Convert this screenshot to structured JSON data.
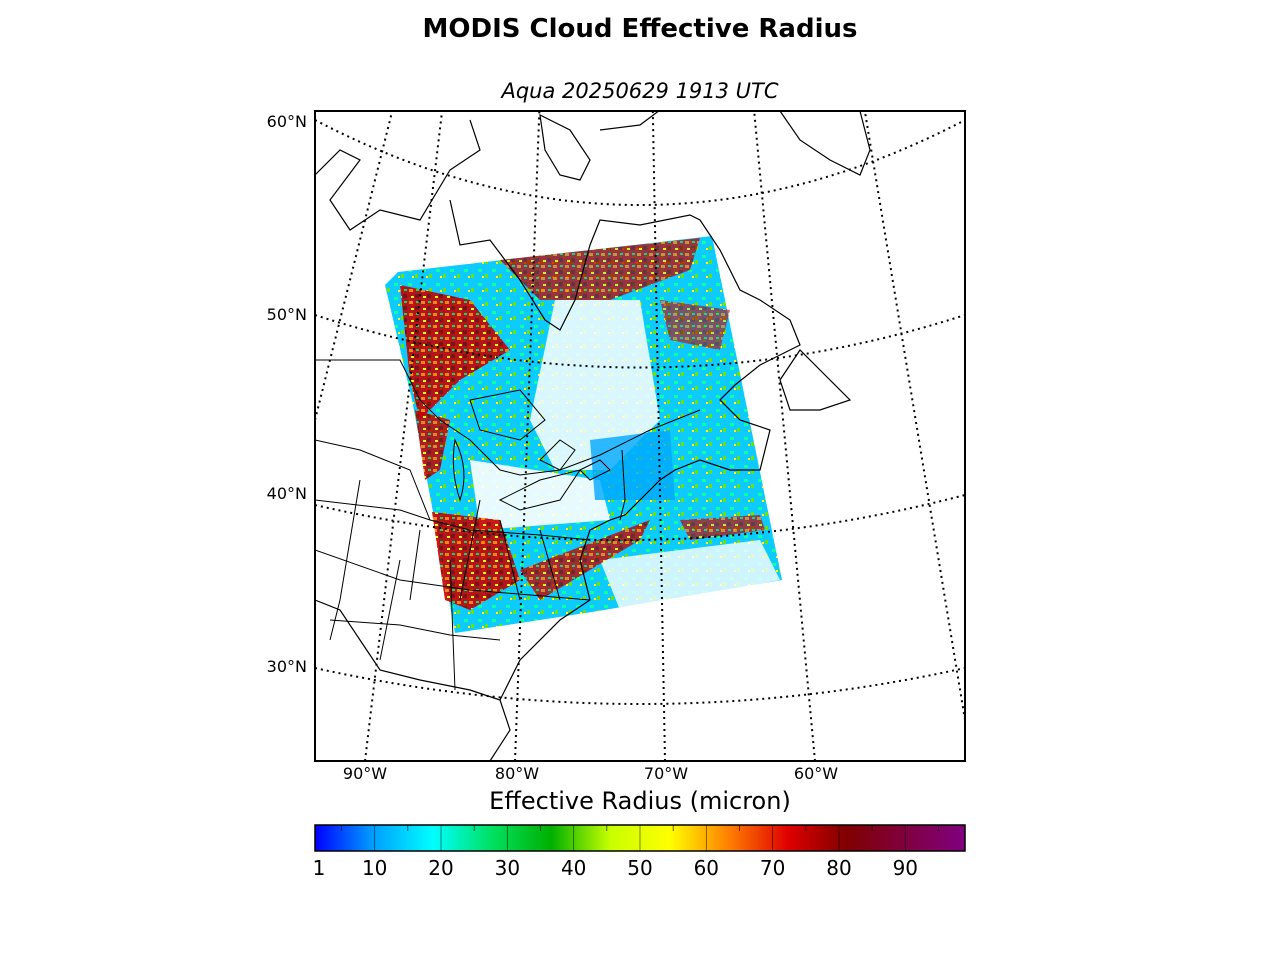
{
  "title": "MODIS Cloud Effective Radius",
  "subtitle": "Aqua 20250629 1913 UTC",
  "map": {
    "lat_labels": [
      {
        "text": "60°N",
        "lat": 60
      },
      {
        "text": "50°N",
        "lat": 50
      },
      {
        "text": "40°N",
        "lat": 40
      },
      {
        "text": "30°N",
        "lat": 30
      }
    ],
    "lon_labels": [
      {
        "text": "90°W",
        "lon": -90
      },
      {
        "text": "80°W",
        "lon": -80
      },
      {
        "text": "70°W",
        "lon": -70
      },
      {
        "text": "60°W",
        "lon": -60
      }
    ],
    "swath_description_colors": [
      "#00c8ff",
      "#00ff80",
      "#c8ff00",
      "#ff8000",
      "#c80000",
      "#800000"
    ]
  },
  "colorbar": {
    "label": "Effective Radius (micron)",
    "range": [
      1,
      99
    ],
    "ticks": [
      "1",
      "10",
      "20",
      "30",
      "40",
      "50",
      "60",
      "70",
      "80",
      "90"
    ],
    "colors": [
      "#0000ff",
      "#00a0ff",
      "#00ffff",
      "#00e060",
      "#00b000",
      "#c8ff00",
      "#ffff00",
      "#ff8000",
      "#e00000",
      "#800000",
      "#800040",
      "#800080"
    ]
  }
}
